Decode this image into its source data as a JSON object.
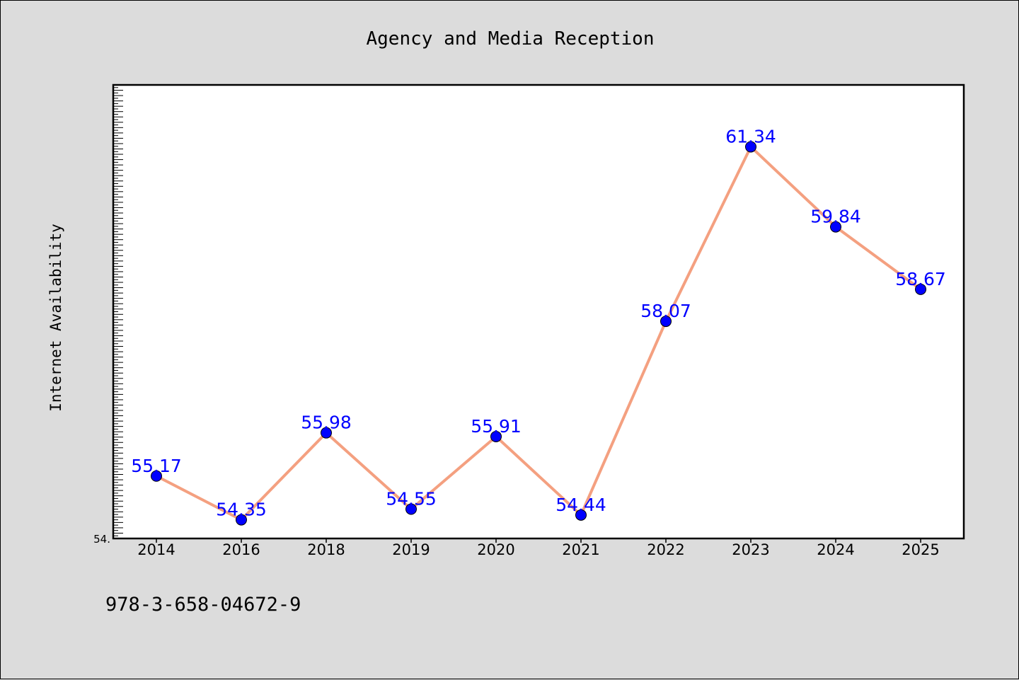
{
  "chart_data": {
    "type": "line",
    "title": "Agency and Media Reception",
    "xlabel": "",
    "ylabel": "Internet Availability",
    "categories": [
      "2014",
      "2016",
      "2018",
      "2019",
      "2020",
      "2021",
      "2022",
      "2023",
      "2024",
      "2025"
    ],
    "series": [
      {
        "values": [
          55.17,
          54.35,
          55.98,
          54.55,
          55.91,
          54.44,
          58.07,
          61.34,
          59.84,
          58.67
        ]
      }
    ],
    "data_labels": [
      "55.17",
      "54.35",
      "55.98",
      "54.55",
      "55.91",
      "54.44",
      "58.07",
      "61.34",
      "59.84",
      "58.67"
    ],
    "ylim": [
      54.0,
      62.5
    ],
    "y_tick_label": "54.",
    "grid": false,
    "legend": "none",
    "colors": {
      "line": "#f4a080",
      "marker": "#0000ff",
      "labels": "#0000ff",
      "background": "#dcdcdc",
      "plot_background": "#ffffff"
    }
  },
  "footer": {
    "isbn": "978-3-658-04672-9"
  }
}
